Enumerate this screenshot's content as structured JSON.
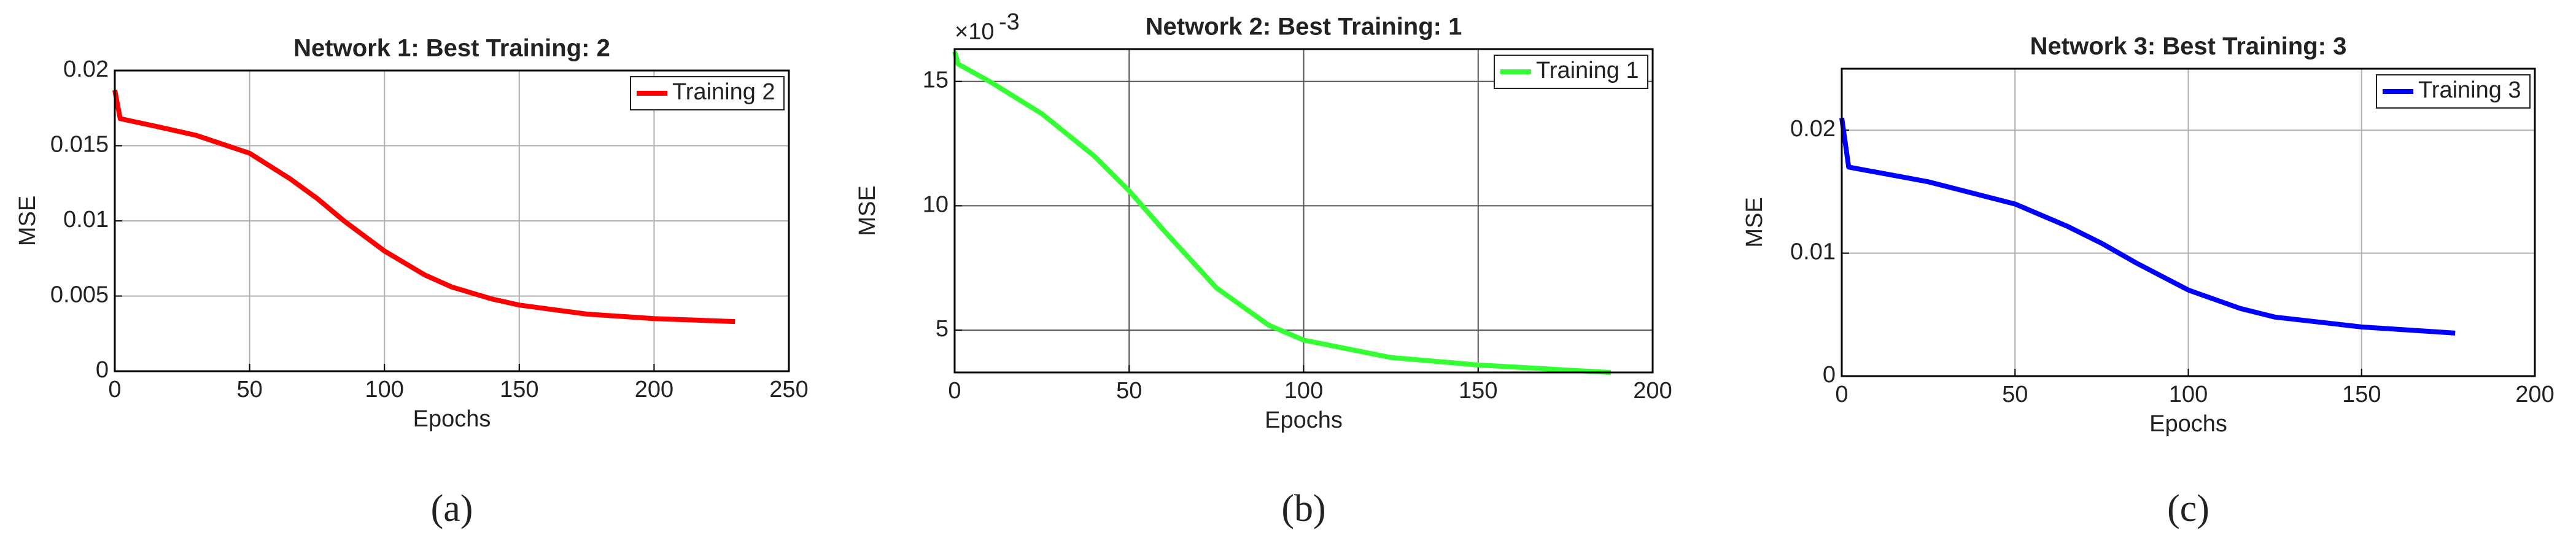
{
  "chart_data": [
    {
      "type": "line",
      "title": "Network 1: Best Training: 2",
      "x_label": "Epochs",
      "y_label": "MSE",
      "caption": "(a)",
      "x": [
        0,
        2,
        15,
        30,
        50,
        65,
        75,
        85,
        100,
        115,
        125,
        140,
        150,
        175,
        200,
        230
      ],
      "series": [
        {
          "name": "Training 2",
          "color": "#ff0000",
          "values": [
            0.0187,
            0.0168,
            0.0163,
            0.0157,
            0.0145,
            0.0128,
            0.0115,
            0.01,
            0.008,
            0.0064,
            0.0056,
            0.0048,
            0.0044,
            0.0038,
            0.0035,
            0.0033
          ]
        }
      ],
      "xlim": [
        0,
        250
      ],
      "xticks": [
        0,
        50,
        100,
        150,
        200,
        250
      ],
      "ylim": [
        0,
        0.02
      ],
      "yticks": [
        0,
        0.005,
        0.01,
        0.015,
        0.02
      ],
      "grid": true,
      "legend": "upper right"
    },
    {
      "type": "line",
      "title": "Network 2: Best Training: 1",
      "x_label": "Epochs",
      "y_label": "MSE",
      "caption": "(b)",
      "y_multiplier": "×10",
      "y_multiplier_exp": "-3",
      "x": [
        0,
        1,
        10,
        25,
        40,
        50,
        60,
        75,
        90,
        100,
        125,
        150,
        175,
        188
      ],
      "series": [
        {
          "name": "Training 1",
          "color": "#33ff33",
          "values": [
            16.2,
            15.7,
            15.0,
            13.7,
            12.0,
            10.6,
            9.0,
            6.7,
            5.2,
            4.6,
            3.9,
            3.6,
            3.4,
            3.3
          ]
        }
      ],
      "xlim": [
        0,
        200
      ],
      "xticks": [
        0,
        50,
        100,
        150,
        200
      ],
      "ylim": [
        3.3,
        16.3
      ],
      "yticks": [
        5,
        10,
        15
      ],
      "grid": true,
      "legend": "upper right"
    },
    {
      "type": "line",
      "title": "Network 3: Best Training: 3",
      "x_label": "Epochs",
      "y_label": "MSE",
      "caption": "(c)",
      "x": [
        0,
        2,
        25,
        50,
        65,
        75,
        85,
        100,
        115,
        125,
        150,
        177
      ],
      "series": [
        {
          "name": "Training 3",
          "color": "#0000ff",
          "values": [
            0.021,
            0.017,
            0.0158,
            0.014,
            0.0122,
            0.0108,
            0.0092,
            0.007,
            0.0055,
            0.0048,
            0.004,
            0.0035
          ]
        }
      ],
      "xlim": [
        0,
        200
      ],
      "xticks": [
        0,
        50,
        100,
        150,
        200
      ],
      "ylim": [
        0,
        0.025
      ],
      "yticks": [
        0,
        0.01,
        0.02
      ],
      "grid": true,
      "legend": "upper right"
    }
  ]
}
